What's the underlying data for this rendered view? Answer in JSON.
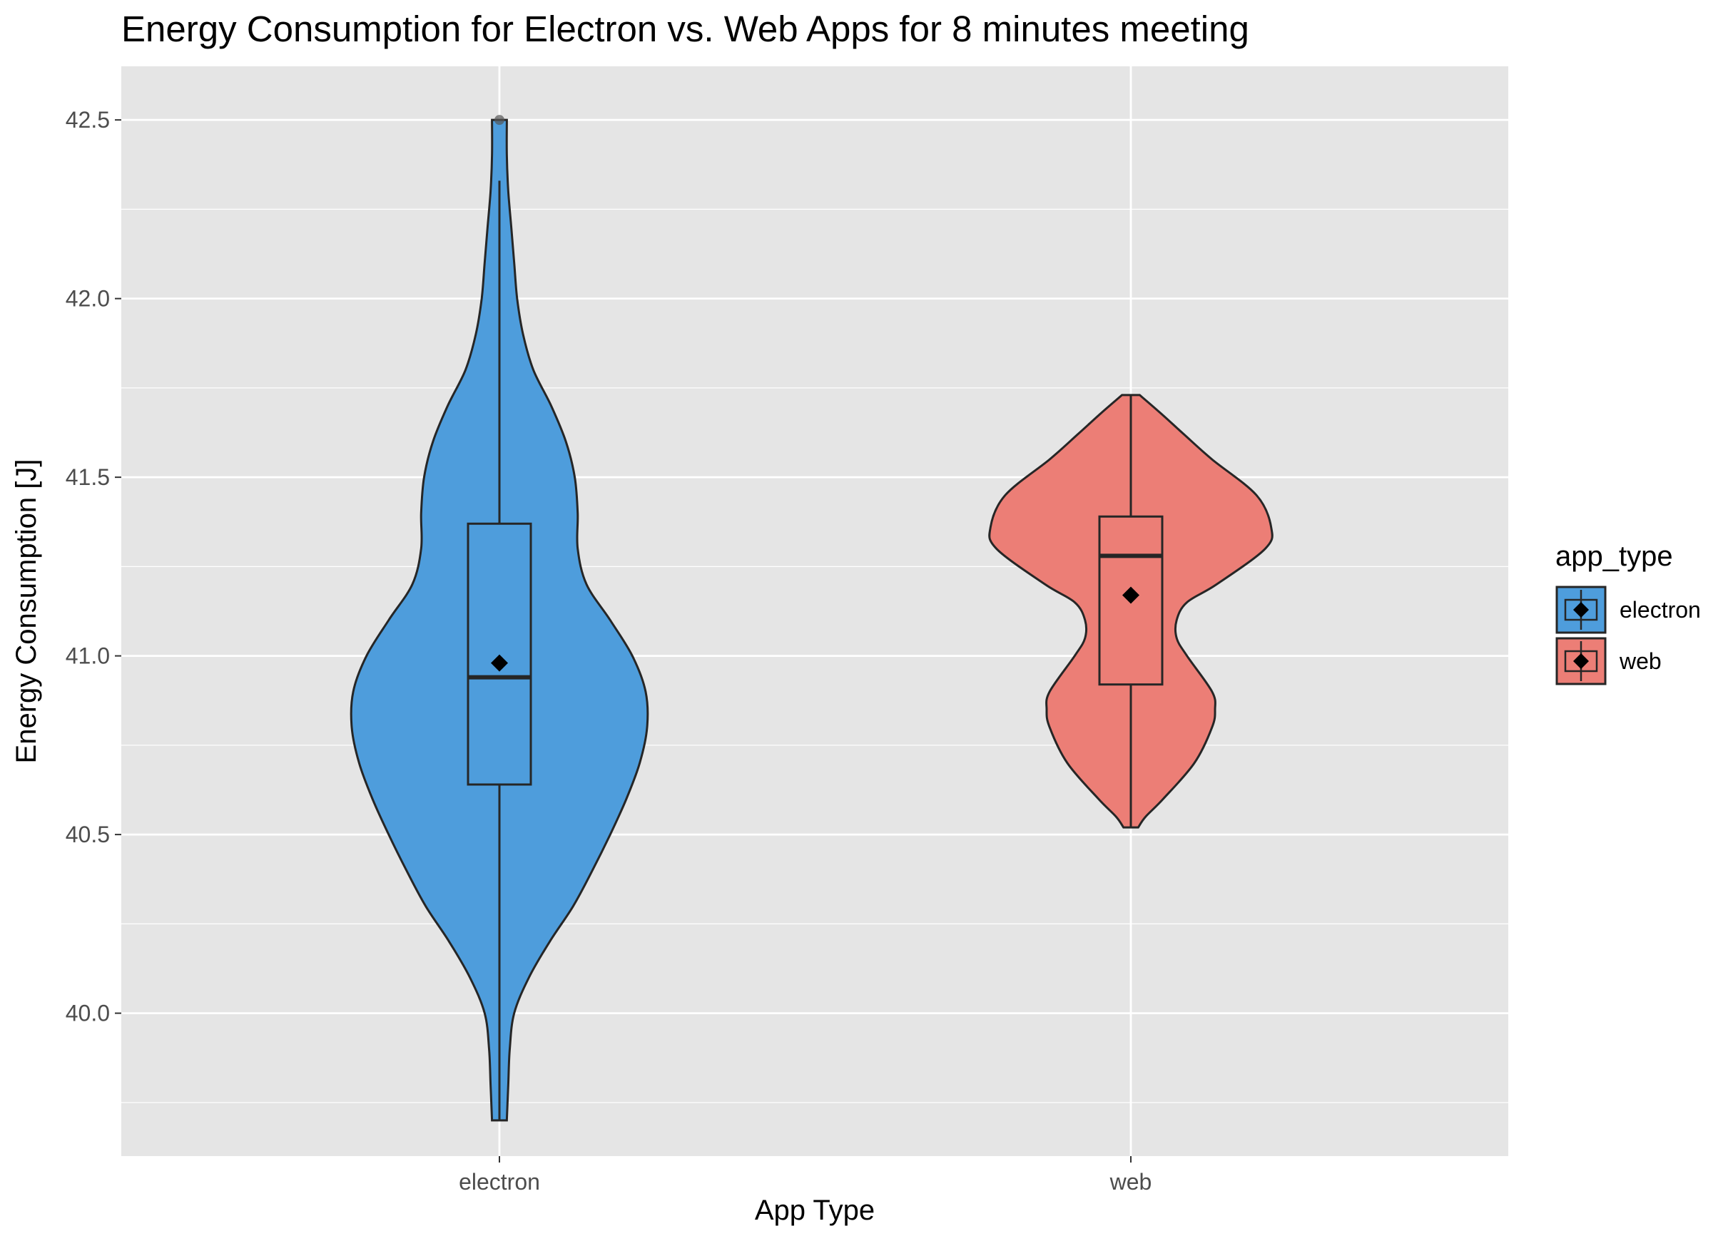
{
  "chart_data": {
    "type": "violin",
    "title": "Energy Consumption for Electron vs. Web Apps for 8 minutes meeting",
    "xlabel": "App Type",
    "ylabel": "Energy Consumption [J]",
    "categories": [
      "electron",
      "web"
    ],
    "ylim": [
      39.6,
      42.65
    ],
    "y_ticks": [
      "40.0",
      "40.5",
      "41.0",
      "41.5",
      "42.0",
      "42.5"
    ],
    "grid": true,
    "legend": {
      "title": "app_type",
      "placement": "right",
      "entries": [
        "electron",
        "web"
      ]
    },
    "colors": {
      "electron": "#4e9ddc",
      "web": "#ec7e76",
      "panel": "#e5e5e5",
      "grid": "#ffffff",
      "outline": "#262626"
    },
    "series": [
      {
        "name": "electron",
        "box": {
          "lower_whisker": 39.7,
          "q1": 40.64,
          "median": 40.94,
          "q3": 41.37,
          "upper_whisker": 42.33,
          "mean": 40.98
        },
        "outlier": 42.5,
        "density": [
          [
            39.7,
            0.05
          ],
          [
            39.8,
            0.06
          ],
          [
            39.9,
            0.07
          ],
          [
            40.0,
            0.1
          ],
          [
            40.1,
            0.2
          ],
          [
            40.2,
            0.34
          ],
          [
            40.3,
            0.5
          ],
          [
            40.4,
            0.63
          ],
          [
            40.5,
            0.75
          ],
          [
            40.6,
            0.86
          ],
          [
            40.7,
            0.95
          ],
          [
            40.8,
            1.0
          ],
          [
            40.9,
            0.99
          ],
          [
            41.0,
            0.9
          ],
          [
            41.1,
            0.75
          ],
          [
            41.2,
            0.59
          ],
          [
            41.3,
            0.53
          ],
          [
            41.4,
            0.53
          ],
          [
            41.5,
            0.51
          ],
          [
            41.6,
            0.45
          ],
          [
            41.7,
            0.35
          ],
          [
            41.8,
            0.23
          ],
          [
            41.9,
            0.16
          ],
          [
            42.0,
            0.12
          ],
          [
            42.1,
            0.1
          ],
          [
            42.2,
            0.08
          ],
          [
            42.3,
            0.06
          ],
          [
            42.4,
            0.05
          ],
          [
            42.5,
            0.05
          ]
        ]
      },
      {
        "name": "web",
        "box": {
          "lower_whisker": 40.52,
          "q1": 40.92,
          "median": 41.28,
          "q3": 41.39,
          "upper_whisker": 41.73,
          "mean": 41.17
        },
        "density": [
          [
            40.52,
            0.05
          ],
          [
            40.55,
            0.1
          ],
          [
            40.6,
            0.22
          ],
          [
            40.7,
            0.43
          ],
          [
            40.8,
            0.55
          ],
          [
            40.85,
            0.57
          ],
          [
            40.9,
            0.55
          ],
          [
            41.0,
            0.38
          ],
          [
            41.05,
            0.31
          ],
          [
            41.1,
            0.31
          ],
          [
            41.15,
            0.38
          ],
          [
            41.2,
            0.58
          ],
          [
            41.3,
            0.91
          ],
          [
            41.36,
            0.95
          ],
          [
            41.45,
            0.85
          ],
          [
            41.55,
            0.55
          ],
          [
            41.62,
            0.36
          ],
          [
            41.68,
            0.2
          ],
          [
            41.73,
            0.06
          ]
        ]
      }
    ]
  }
}
